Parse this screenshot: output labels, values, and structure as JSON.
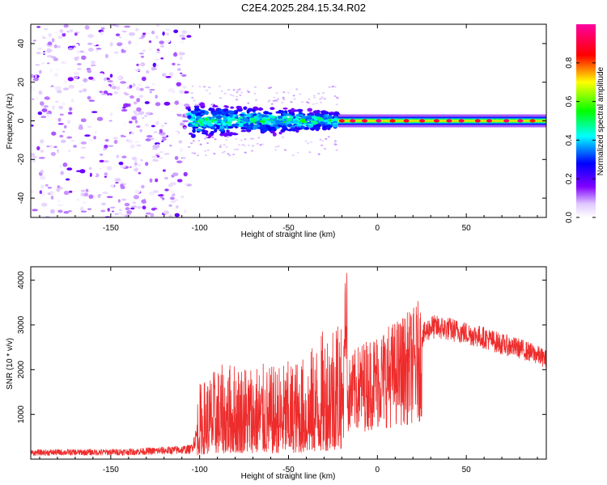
{
  "title": "C2E4.2025.284.15.34.R02",
  "chart_data": [
    {
      "type": "heatmap",
      "name": "spectrogram",
      "xlabel": "Height of straight line (km)",
      "ylabel": "Frequency (Hz)",
      "xlim": [
        -195,
        95
      ],
      "ylim": [
        -50,
        50
      ],
      "xticks": [
        -150,
        -100,
        -50,
        0,
        50
      ],
      "yticks": [
        -40,
        -20,
        0,
        20,
        40
      ],
      "regions": [
        {
          "x_range": [
            -195,
            -106
          ],
          "description": "broadband noise",
          "freq_spread": 50,
          "amplitude_range": [
            0.0,
            0.15
          ]
        },
        {
          "x_range": [
            -106,
            -22
          ],
          "description": "widening signal band",
          "freq_spread": 10,
          "amplitude_range": [
            0.1,
            0.5
          ]
        },
        {
          "x_range": [
            -22,
            95
          ],
          "description": "narrow carrier line",
          "freq_center": 0,
          "amplitude_range": [
            0.5,
            1.0
          ]
        }
      ],
      "colorbar": {
        "label": "Normalized spectral amplitude",
        "range": [
          0.0,
          1.0
        ],
        "ticks": [
          "0.0",
          "0.2",
          "0.4",
          "0.6",
          "0.8"
        ],
        "tick_values": [
          0.0,
          0.2,
          0.4,
          0.6,
          0.8
        ]
      }
    },
    {
      "type": "line",
      "name": "snr",
      "xlabel": "Height of straight line (km)",
      "ylabel": "SNR (10 * v/v)",
      "xlim": [
        -195,
        95
      ],
      "ylim": [
        0,
        4300
      ],
      "xticks": [
        -150,
        -100,
        -50,
        0,
        50
      ],
      "yticks": [
        1000,
        2000,
        3000,
        4000
      ],
      "series": [
        {
          "name": "SNR",
          "color": "#ee2c2c",
          "x": [
            -195,
            -180,
            -160,
            -140,
            -120,
            -105,
            -100,
            -90,
            -80,
            -70,
            -60,
            -50,
            -40,
            -30,
            -20,
            -17,
            -10,
            0,
            10,
            20,
            30,
            40,
            50,
            60,
            70,
            80,
            90,
            95
          ],
          "values": [
            150,
            160,
            160,
            170,
            200,
            230,
            700,
            850,
            900,
            900,
            850,
            900,
            950,
            1200,
            1500,
            1700,
            2000,
            2200,
            2400,
            2600,
            3050,
            3000,
            2900,
            2800,
            2650,
            2550,
            2400,
            2300
          ]
        }
      ]
    }
  ]
}
